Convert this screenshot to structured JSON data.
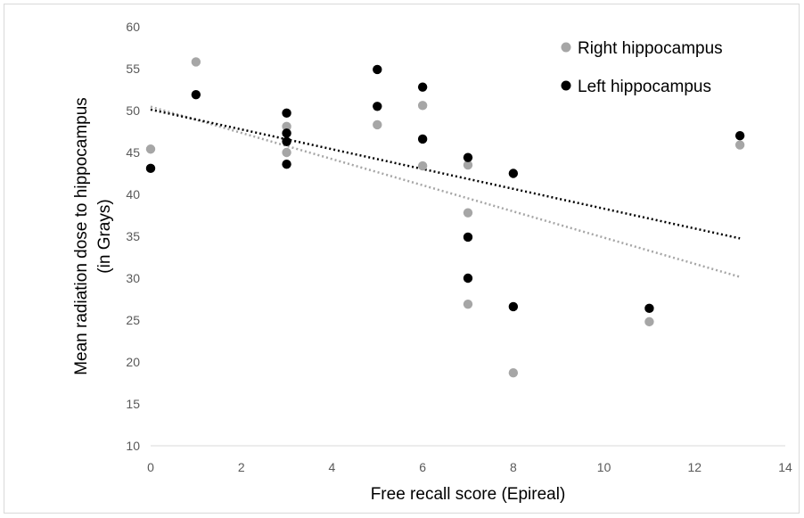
{
  "chart_data": {
    "type": "scatter",
    "title": "",
    "xlabel": "Free recall score (Epireal)",
    "ylabel_line1": "Mean radiation dose to hippocampus",
    "ylabel_line2": "(in Grays)",
    "xlim": [
      0,
      14
    ],
    "ylim": [
      10,
      60
    ],
    "x_ticks": [
      0,
      2,
      4,
      6,
      8,
      10,
      12,
      14
    ],
    "y_ticks": [
      10,
      15,
      20,
      25,
      30,
      35,
      40,
      45,
      50,
      55,
      60
    ],
    "grid": false,
    "legend_position": "top-right",
    "series": [
      {
        "name": "Right hippocampus",
        "color": "#a6a6a6",
        "trendline": "linear, dotted",
        "points": [
          {
            "x": 0,
            "y": 45.4
          },
          {
            "x": 1,
            "y": 55.8
          },
          {
            "x": 3,
            "y": 48.1
          },
          {
            "x": 3,
            "y": 47.3
          },
          {
            "x": 3,
            "y": 45.0
          },
          {
            "x": 5,
            "y": 48.3
          },
          {
            "x": 6,
            "y": 50.6
          },
          {
            "x": 6,
            "y": 43.4
          },
          {
            "x": 7,
            "y": 43.5
          },
          {
            "x": 7,
            "y": 37.8
          },
          {
            "x": 7,
            "y": 26.9
          },
          {
            "x": 8,
            "y": 18.7
          },
          {
            "x": 11,
            "y": 24.8
          },
          {
            "x": 13,
            "y": 45.9
          }
        ]
      },
      {
        "name": "Left hippocampus",
        "color": "#000000",
        "trendline": "linear, dotted",
        "points": [
          {
            "x": 0,
            "y": 43.1
          },
          {
            "x": 1,
            "y": 51.9
          },
          {
            "x": 3,
            "y": 49.7
          },
          {
            "x": 3,
            "y": 47.3
          },
          {
            "x": 3,
            "y": 46.3
          },
          {
            "x": 3,
            "y": 43.6
          },
          {
            "x": 5,
            "y": 54.9
          },
          {
            "x": 5,
            "y": 50.5
          },
          {
            "x": 6,
            "y": 52.8
          },
          {
            "x": 6,
            "y": 46.6
          },
          {
            "x": 7,
            "y": 44.4
          },
          {
            "x": 7,
            "y": 34.9
          },
          {
            "x": 7,
            "y": 30.0
          },
          {
            "x": 8,
            "y": 42.5
          },
          {
            "x": 8,
            "y": 26.6
          },
          {
            "x": 11,
            "y": 26.4
          },
          {
            "x": 13,
            "y": 47.0
          }
        ]
      }
    ]
  }
}
